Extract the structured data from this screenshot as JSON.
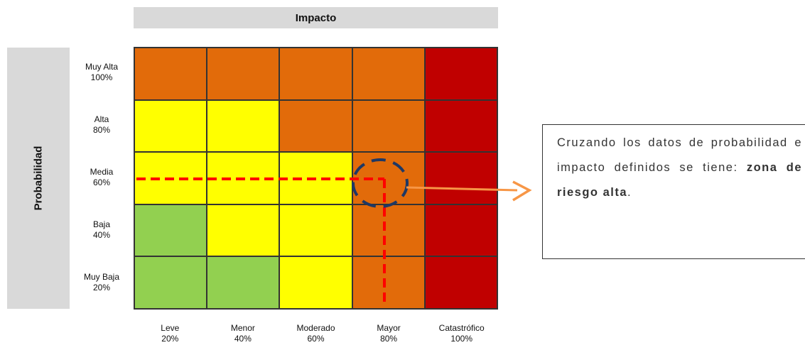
{
  "impact_title": "Impacto",
  "probability_title": "Probabilidad",
  "rows": [
    {
      "label": "Muy Alta",
      "value": "100%",
      "cells": [
        "orange",
        "orange",
        "orange",
        "orange",
        "red"
      ]
    },
    {
      "label": "Alta",
      "value": "80%",
      "cells": [
        "yellow",
        "yellow",
        "orange",
        "orange",
        "red"
      ]
    },
    {
      "label": "Media",
      "value": "60%",
      "cells": [
        "yellow",
        "yellow",
        "yellow",
        "orange",
        "red"
      ]
    },
    {
      "label": "Baja",
      "value": "40%",
      "cells": [
        "green",
        "yellow",
        "yellow",
        "orange",
        "red"
      ]
    },
    {
      "label": "Muy Baja",
      "value": "20%",
      "cells": [
        "green",
        "green",
        "yellow",
        "orange",
        "red"
      ]
    }
  ],
  "columns": [
    {
      "label": "Leve",
      "value": "20%"
    },
    {
      "label": "Menor",
      "value": "40%"
    },
    {
      "label": "Moderado",
      "value": "60%"
    },
    {
      "label": "Mayor",
      "value": "80%"
    },
    {
      "label": "Catastrófico",
      "value": "100%"
    }
  ],
  "colors": {
    "green": "#92d050",
    "yellow": "#ffff00",
    "orange": "#e26b0a",
    "red": "#c00000",
    "dashed_line": "#ff0000",
    "circle": "#1f3864",
    "arrow": "#f79646"
  },
  "callout": {
    "text": "Cruzando los datos de probabilidad e impacto definidos se tiene: ",
    "emphasis": "zona de riesgo alta",
    "end": "."
  }
}
